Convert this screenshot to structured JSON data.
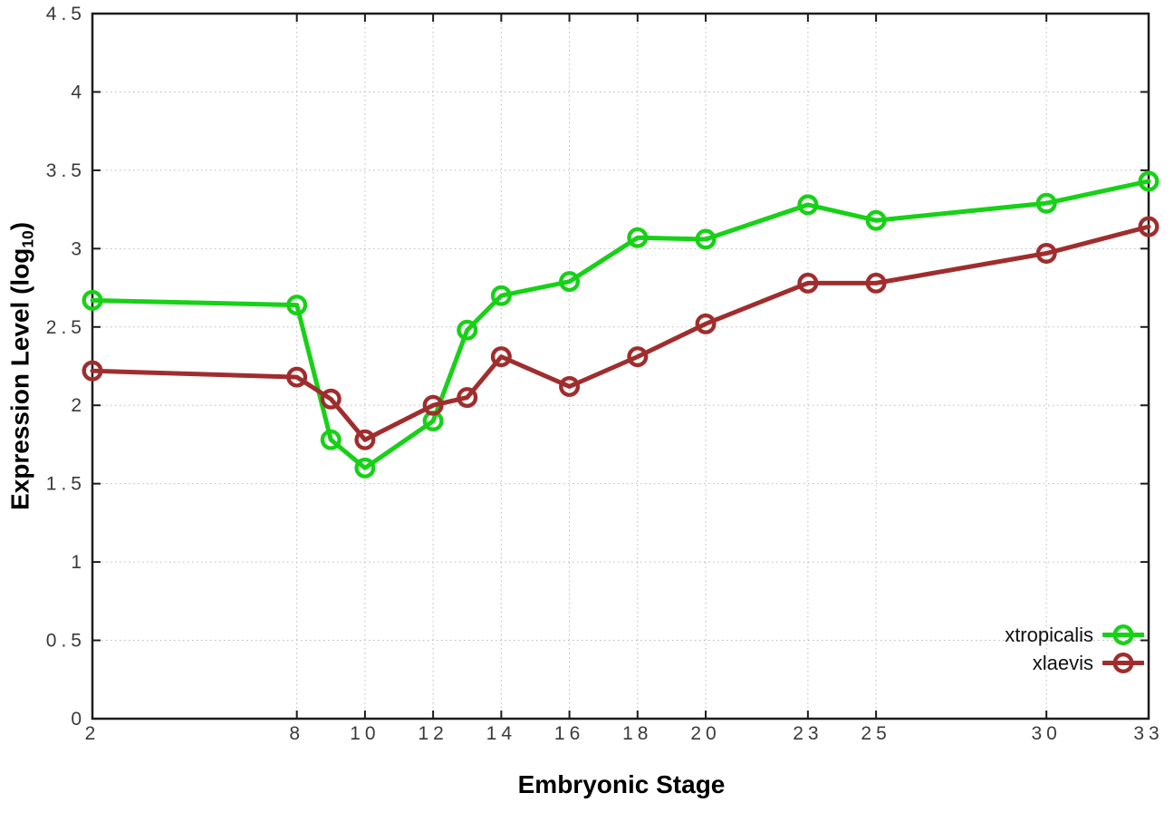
{
  "chart_data": {
    "type": "line",
    "title": "",
    "xlabel": "Embryonic Stage",
    "ylabel": "Expression Level (log10)",
    "ylabel_parts": {
      "pre": "Expression Level (log",
      "sub": "10",
      "post": ")"
    },
    "x": [
      2,
      8,
      9,
      10,
      12,
      13,
      14,
      16,
      18,
      20,
      23,
      25,
      30,
      33
    ],
    "series": [
      {
        "name": "xtropicalis",
        "color": "#17d117",
        "values": [
          2.67,
          2.64,
          1.78,
          1.6,
          1.9,
          2.48,
          2.7,
          2.79,
          3.07,
          3.06,
          3.28,
          3.18,
          3.29,
          3.43
        ]
      },
      {
        "name": "xlaevis",
        "color": "#a02d2d",
        "values": [
          2.22,
          2.18,
          2.04,
          1.78,
          2.0,
          2.05,
          2.31,
          2.12,
          2.31,
          2.52,
          2.78,
          2.78,
          2.97,
          3.14
        ]
      }
    ],
    "xlim": [
      2,
      33
    ],
    "ylim": [
      0,
      4.5
    ],
    "x_ticks": [
      2,
      8,
      10,
      12,
      14,
      16,
      18,
      20,
      23,
      25,
      30,
      33
    ],
    "y_ticks": [
      0,
      0.5,
      1,
      1.5,
      2,
      2.5,
      3,
      3.5,
      4,
      4.5
    ],
    "grid": true,
    "legend_position": "bottom-right",
    "marker": "open-circle",
    "colors": {
      "background": "#ffffff",
      "grid": "#b9b9b9",
      "axis": "#1c1c1c",
      "tick_label": "#3a3a3a",
      "legend_text": "#111111"
    }
  }
}
